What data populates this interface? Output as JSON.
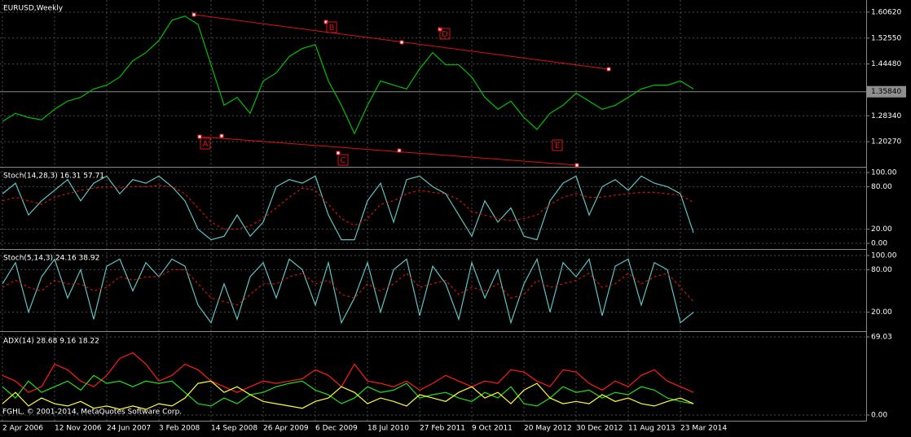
{
  "chart_data": [
    {
      "type": "line",
      "title": "EURUSD,Weekly",
      "color": "#00c000",
      "categories": [
        "2 Apr 2006",
        null,
        null,
        null,
        "12 Nov 2006",
        null,
        null,
        null,
        "24 Jun 2007",
        null,
        null,
        null,
        "3 Feb 2008",
        null,
        null,
        null,
        "14 Sep 2008",
        null,
        null,
        null,
        "26 Apr 2009",
        null,
        null,
        null,
        "6 Dec 2009",
        null,
        null,
        null,
        "18 Jul 2010",
        null,
        null,
        null,
        "27 Feb 2011",
        null,
        null,
        null,
        "9 Oct 2011",
        null,
        null,
        null,
        "20 May 2012",
        null,
        null,
        null,
        "30 Dec 2012",
        null,
        null,
        null,
        "11 Aug 2013",
        null,
        null,
        null,
        "23 Mar 2014",
        null
      ],
      "values": [
        1.266,
        1.291,
        1.278,
        1.271,
        1.304,
        1.329,
        1.341,
        1.367,
        1.379,
        1.404,
        1.455,
        1.48,
        1.518,
        1.581,
        1.594,
        1.568,
        1.442,
        1.316,
        1.341,
        1.291,
        1.392,
        1.417,
        1.468,
        1.493,
        1.505,
        1.392,
        1.316,
        1.228,
        1.316,
        1.392,
        1.379,
        1.367,
        1.43,
        1.48,
        1.442,
        1.442,
        1.404,
        1.341,
        1.304,
        1.329,
        1.278,
        1.241,
        1.291,
        1.316,
        1.354,
        1.329,
        1.304,
        1.316,
        1.341,
        1.367,
        1.379,
        1.379,
        1.392,
        1.367
      ],
      "ylim": [
        1.127,
        1.634
      ],
      "yticks": [
        {
          "value": 1.6062,
          "label": "1.60620"
        },
        {
          "value": 1.5255,
          "label": "1.52550"
        },
        {
          "value": 1.4448,
          "label": "1.44480"
        },
        {
          "value": 1.2834,
          "label": "1.28340"
        },
        {
          "value": 1.2027,
          "label": "1.20270"
        }
      ],
      "last_price": {
        "value": 1.3584,
        "label": "1.35840"
      },
      "annotations": [
        "A",
        "B",
        "C",
        "D",
        "E"
      ],
      "grid": true
    },
    {
      "type": "line",
      "title": "Stoch(14,28,3) 16.31 57.71",
      "ylim": [
        0,
        100
      ],
      "yticks": [
        {
          "value": 100,
          "label": "100.00"
        },
        {
          "value": 80,
          "label": "80.00"
        },
        {
          "value": 20,
          "label": "20.00"
        },
        {
          "value": 0,
          "label": "0.00"
        }
      ],
      "series": [
        {
          "color": "#5fc4c4",
          "dashed": false,
          "values": [
            70,
            85,
            40,
            60,
            75,
            90,
            60,
            85,
            95,
            70,
            90,
            85,
            95,
            80,
            60,
            20,
            5,
            10,
            40,
            10,
            30,
            80,
            90,
            85,
            95,
            40,
            5,
            5,
            60,
            85,
            30,
            90,
            95,
            80,
            70,
            40,
            10,
            60,
            30,
            50,
            10,
            5,
            60,
            85,
            95,
            40,
            80,
            90,
            75,
            95,
            85,
            80,
            70,
            15
          ]
        },
        {
          "color": "#d01010",
          "dashed": true,
          "values": [
            60,
            65,
            60,
            55,
            65,
            70,
            75,
            78,
            80,
            78,
            80,
            80,
            82,
            80,
            70,
            50,
            30,
            20,
            20,
            25,
            35,
            50,
            65,
            78,
            75,
            55,
            35,
            25,
            35,
            55,
            60,
            70,
            75,
            72,
            70,
            62,
            45,
            40,
            35,
            32,
            35,
            40,
            55,
            65,
            70,
            65,
            65,
            68,
            70,
            72,
            72,
            70,
            68,
            58
          ]
        }
      ],
      "grid": true
    },
    {
      "type": "line",
      "title": "Stoch(5,14,3) 24.16 38.92",
      "ylim": [
        0,
        100
      ],
      "yticks": [
        {
          "value": 100,
          "label": "100.00"
        },
        {
          "value": 80,
          "label": "80.00"
        },
        {
          "value": 20,
          "label": "20.00"
        }
      ],
      "series": [
        {
          "color": "#5fc4c4",
          "dashed": false,
          "values": [
            60,
            90,
            20,
            70,
            95,
            40,
            80,
            10,
            85,
            95,
            50,
            90,
            70,
            95,
            85,
            30,
            5,
            60,
            10,
            70,
            90,
            40,
            95,
            80,
            30,
            90,
            5,
            40,
            90,
            20,
            80,
            95,
            15,
            85,
            60,
            10,
            90,
            40,
            80,
            5,
            60,
            95,
            20,
            90,
            70,
            95,
            15,
            85,
            95,
            30,
            90,
            80,
            5,
            20
          ]
        },
        {
          "color": "#d01010",
          "dashed": true,
          "values": [
            55,
            65,
            55,
            50,
            65,
            60,
            60,
            50,
            55,
            70,
            65,
            70,
            70,
            80,
            80,
            60,
            40,
            35,
            30,
            45,
            60,
            60,
            70,
            75,
            60,
            65,
            45,
            40,
            60,
            50,
            60,
            75,
            55,
            60,
            65,
            45,
            55,
            50,
            60,
            40,
            45,
            65,
            55,
            60,
            65,
            75,
            55,
            60,
            75,
            60,
            70,
            75,
            55,
            35
          ]
        }
      ],
      "grid": true
    },
    {
      "type": "line",
      "title": "ADX(14) 28.68 9.16 18.22",
      "ylim": [
        0,
        69.03
      ],
      "yticks": [
        69.03,
        {
          "value": 0,
          "label": "0.00"
        }
      ],
      "series": [
        {
          "color": "#ff1a1a",
          "dashed": false,
          "values": [
            35,
            30,
            20,
            25,
            45,
            40,
            30,
            25,
            35,
            50,
            55,
            45,
            30,
            35,
            45,
            40,
            30,
            25,
            20,
            25,
            30,
            28,
            30,
            32,
            40,
            35,
            25,
            45,
            30,
            28,
            25,
            30,
            22,
            28,
            35,
            30,
            25,
            30,
            28,
            40,
            38,
            30,
            25,
            40,
            38,
            28,
            22,
            30,
            25,
            35,
            40,
            30,
            25,
            20
          ]
        },
        {
          "color": "#22dd22",
          "dashed": false,
          "values": [
            25,
            15,
            30,
            20,
            25,
            30,
            22,
            35,
            28,
            30,
            25,
            30,
            28,
            30,
            20,
            10,
            8,
            15,
            10,
            18,
            20,
            25,
            28,
            30,
            22,
            18,
            10,
            15,
            25,
            20,
            22,
            28,
            15,
            18,
            20,
            15,
            12,
            20,
            15,
            25,
            10,
            8,
            15,
            25,
            20,
            22,
            15,
            20,
            18,
            25,
            22,
            15,
            12,
            10
          ]
        },
        {
          "color": "#ffff33",
          "dashed": false,
          "values": [
            10,
            20,
            8,
            15,
            10,
            8,
            12,
            6,
            8,
            5,
            8,
            5,
            10,
            8,
            15,
            28,
            30,
            20,
            25,
            18,
            12,
            10,
            8,
            6,
            12,
            15,
            25,
            20,
            10,
            15,
            12,
            8,
            18,
            15,
            12,
            20,
            25,
            15,
            20,
            10,
            22,
            28,
            15,
            10,
            12,
            10,
            18,
            12,
            15,
            10,
            8,
            12,
            15,
            10
          ]
        }
      ],
      "grid": true
    }
  ],
  "footer": "FGHL, © 2001-2014, MetaQuotes Software Corp."
}
